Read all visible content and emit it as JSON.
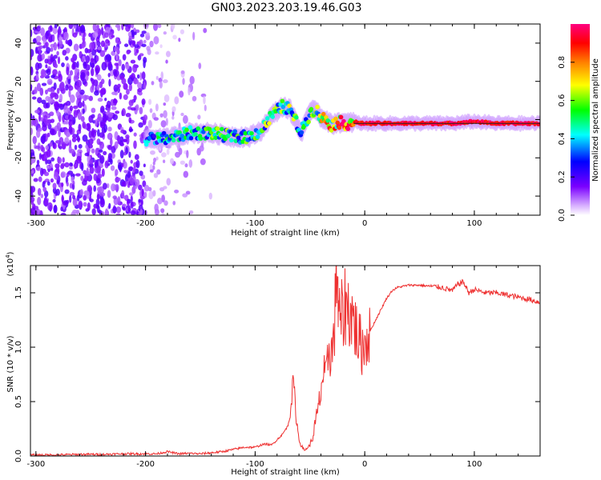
{
  "title": "GN03.2023.203.19.46.G03",
  "chart_data": [
    {
      "type": "heatmap",
      "xlabel": "Height of straight line (km)",
      "ylabel": "Frequency (Hz)",
      "xlim": [
        -305,
        160
      ],
      "ylim": [
        -50,
        50
      ],
      "xticks": [
        "-300",
        "-200",
        "-100",
        "0",
        "100"
      ],
      "xtick_values": [
        -300,
        -200,
        -100,
        0,
        100
      ],
      "yticks": [
        "-40",
        "-20",
        "0",
        "20",
        "40"
      ],
      "ytick_values": [
        -40,
        -20,
        0,
        20,
        40
      ],
      "colorbar": {
        "label": "Normalized spectral amplitude",
        "range": [
          0,
          1
        ],
        "ticks": [
          "0.0",
          "0.2",
          "0.4",
          "0.6",
          "0.8"
        ],
        "tick_values": [
          0.0,
          0.2,
          0.4,
          0.6,
          0.8
        ],
        "colormap": [
          "#ffffff",
          "#7a00ff",
          "#0000ff",
          "#00ffff",
          "#00ff00",
          "#ffff00",
          "#ff7f00",
          "#ff0000",
          "#ff0080"
        ]
      },
      "ridge": {
        "height_km": [
          -195,
          -180,
          -160,
          -140,
          -120,
          -105,
          -95,
          -85,
          -75,
          -68,
          -62,
          -58,
          -55,
          -50,
          -45,
          -40,
          -35,
          -30,
          -25,
          -20,
          -15,
          -10,
          -5,
          0,
          20,
          50,
          80,
          100,
          120,
          140,
          160
        ],
        "frequency_hz": [
          -10,
          -10,
          -7,
          -7,
          -9,
          -9,
          -6,
          2,
          7,
          5,
          -2,
          -7,
          -2,
          3,
          6,
          1,
          0,
          -3,
          -1,
          -2,
          -2,
          -1,
          -2,
          -2,
          -2,
          -2,
          -2,
          -1,
          -2,
          -2,
          -2
        ],
        "amplitude": [
          0.35,
          0.4,
          0.4,
          0.45,
          0.45,
          0.45,
          0.45,
          0.5,
          0.5,
          0.5,
          0.5,
          0.4,
          0.4,
          0.45,
          0.5,
          0.6,
          0.65,
          0.7,
          0.75,
          0.8,
          0.85,
          0.9,
          0.92,
          0.95,
          0.95,
          0.95,
          0.95,
          0.95,
          0.95,
          0.95,
          0.95
        ]
      }
    },
    {
      "type": "line",
      "xlabel": "Height of straight line (km)",
      "ylabel": "SNR (10 * v/v)",
      "y_multiplier": "(x10",
      "y_multiplier_exp": "4",
      "xlim": [
        -305,
        160
      ],
      "ylim": [
        0,
        1.75
      ],
      "xticks": [
        "-300",
        "-200",
        "-100",
        "0",
        "100"
      ],
      "xtick_values": [
        -300,
        -200,
        -100,
        0,
        100
      ],
      "yticks": [
        "0.0",
        "0.5",
        "1.0",
        "1.5"
      ],
      "ytick_values": [
        0.0,
        0.5,
        1.0,
        1.5
      ],
      "series": [
        {
          "color": "#ee3030",
          "x": [
            -305,
            -280,
            -260,
            -240,
            -220,
            -200,
            -190,
            -180,
            -175,
            -170,
            -160,
            -150,
            -140,
            -130,
            -120,
            -110,
            -100,
            -95,
            -90,
            -85,
            -80,
            -75,
            -70,
            -67,
            -65,
            -63,
            -60,
            -58,
            -55,
            -52,
            -50,
            -48,
            -45,
            -42,
            -40,
            -38,
            -35,
            -33,
            -30,
            -28,
            -26,
            -25,
            -24,
            -22,
            -20,
            -18,
            -15,
            -12,
            -10,
            -8,
            -5,
            -2,
            0,
            5,
            10,
            15,
            20,
            25,
            30,
            40,
            50,
            60,
            70,
            80,
            85,
            90,
            95,
            100,
            110,
            120,
            130,
            140,
            150,
            160
          ],
          "y": [
            0.01,
            0.01,
            0.015,
            0.015,
            0.02,
            0.02,
            0.02,
            0.04,
            0.03,
            0.02,
            0.025,
            0.02,
            0.03,
            0.04,
            0.06,
            0.08,
            0.08,
            0.1,
            0.11,
            0.1,
            0.15,
            0.2,
            0.28,
            0.5,
            0.7,
            0.4,
            0.15,
            0.1,
            0.05,
            0.08,
            0.1,
            0.15,
            0.3,
            0.45,
            0.6,
            0.75,
            0.7,
            1.0,
            0.95,
            1.1,
            1.6,
            1.75,
            1.2,
            1.3,
            1.25,
            1.4,
            1.35,
            1.3,
            1.25,
            1.15,
            1.05,
            1.0,
            1.05,
            1.15,
            1.25,
            1.35,
            1.45,
            1.52,
            1.55,
            1.57,
            1.57,
            1.56,
            1.55,
            1.52,
            1.58,
            1.6,
            1.5,
            1.53,
            1.5,
            1.5,
            1.48,
            1.46,
            1.44,
            1.41
          ]
        }
      ]
    }
  ]
}
